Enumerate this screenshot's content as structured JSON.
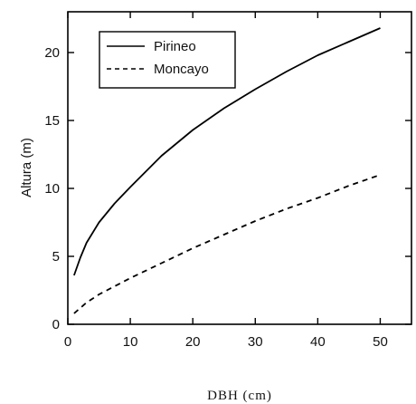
{
  "chart_data": {
    "type": "line",
    "xlabel": "DBH (cm)",
    "ylabel": "Altura (m)",
    "xlim": [
      0,
      55
    ],
    "ylim": [
      0,
      23
    ],
    "xticks": [
      0,
      10,
      20,
      30,
      40,
      50
    ],
    "yticks": [
      0,
      5,
      10,
      15,
      20
    ],
    "grid": false,
    "legend_position": "top-left",
    "series": [
      {
        "name": "Pirineo",
        "style": "solid",
        "color": "#000000",
        "x": [
          1,
          2,
          3,
          5,
          7.5,
          10,
          15,
          20,
          25,
          30,
          35,
          40,
          45,
          50
        ],
        "y": [
          3.6,
          4.9,
          6.0,
          7.5,
          8.9,
          10.1,
          12.4,
          14.3,
          15.9,
          17.3,
          18.6,
          19.8,
          20.8,
          21.8
        ]
      },
      {
        "name": "Moncayo",
        "style": "dashed",
        "color": "#000000",
        "x": [
          1,
          3,
          5,
          7.5,
          10,
          15,
          20,
          25,
          30,
          35,
          40,
          45,
          50
        ],
        "y": [
          0.8,
          1.6,
          2.2,
          2.8,
          3.4,
          4.5,
          5.6,
          6.6,
          7.6,
          8.5,
          9.3,
          10.2,
          11.0
        ]
      }
    ]
  }
}
